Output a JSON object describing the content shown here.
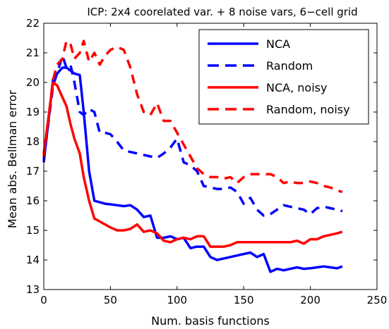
{
  "chart_data": {
    "type": "line",
    "title": "ICP: 2x4 coorelated var. + 8 noise vars, 6−cell grid",
    "xlabel": "Num. basis functions",
    "ylabel": "Mean abs. Bellman error",
    "xlim": [
      0,
      250
    ],
    "ylim": [
      13,
      22
    ],
    "xticks": [
      0,
      50,
      100,
      150,
      200,
      250
    ],
    "yticks": [
      13,
      14,
      15,
      16,
      17,
      18,
      19,
      20,
      21,
      22
    ],
    "grid": false,
    "legend_position": "top-right",
    "series": [
      {
        "name": "NCA",
        "color": "#0000ff",
        "dash": "solid",
        "x": [
          0,
          7,
          10,
          14,
          17,
          20,
          23,
          27,
          30,
          34,
          38,
          42,
          46,
          50,
          55,
          60,
          65,
          70,
          75,
          80,
          85,
          90,
          95,
          100,
          105,
          110,
          115,
          120,
          125,
          130,
          135,
          140,
          145,
          150,
          155,
          160,
          165,
          170,
          175,
          180,
          185,
          190,
          195,
          200,
          205,
          210,
          215,
          220,
          224
        ],
        "values": [
          17.3,
          20.1,
          20.3,
          20.5,
          20.5,
          20.4,
          20.3,
          20.25,
          19.0,
          17.0,
          16.0,
          15.95,
          15.9,
          15.88,
          15.85,
          15.82,
          15.85,
          15.7,
          15.45,
          15.5,
          14.75,
          14.75,
          14.8,
          14.7,
          14.75,
          14.4,
          14.45,
          14.45,
          14.1,
          14.0,
          14.05,
          14.1,
          14.15,
          14.2,
          14.25,
          14.1,
          14.2,
          13.6,
          13.7,
          13.65,
          13.7,
          13.75,
          13.7,
          13.72,
          13.75,
          13.78,
          13.75,
          13.72,
          13.78
        ]
      },
      {
        "name": "Random",
        "color": "#0000ff",
        "dash": "dashed",
        "x": [
          0,
          7,
          10,
          14,
          17,
          20,
          23,
          27,
          30,
          34,
          38,
          42,
          46,
          50,
          55,
          60,
          65,
          70,
          75,
          80,
          85,
          90,
          95,
          100,
          105,
          110,
          115,
          120,
          125,
          130,
          135,
          140,
          145,
          150,
          155,
          160,
          165,
          170,
          175,
          180,
          185,
          190,
          195,
          200,
          205,
          210,
          215,
          220,
          224
        ],
        "values": [
          17.4,
          19.9,
          20.3,
          20.9,
          20.5,
          20.6,
          20.0,
          19.0,
          18.9,
          19.1,
          19.0,
          18.3,
          18.3,
          18.25,
          18.0,
          17.7,
          17.65,
          17.6,
          17.55,
          17.5,
          17.45,
          17.6,
          17.8,
          18.1,
          17.3,
          17.2,
          17.0,
          16.5,
          16.45,
          16.4,
          16.4,
          16.45,
          16.3,
          15.9,
          16.1,
          15.7,
          15.5,
          15.55,
          15.7,
          15.85,
          15.8,
          15.75,
          15.7,
          15.55,
          15.75,
          15.8,
          15.75,
          15.7,
          15.65
        ]
      },
      {
        "name": "NCA, noisy",
        "color": "#ff0000",
        "dash": "solid",
        "x": [
          0,
          7,
          10,
          14,
          17,
          20,
          23,
          27,
          30,
          34,
          38,
          42,
          46,
          50,
          55,
          60,
          65,
          70,
          75,
          80,
          85,
          90,
          95,
          100,
          105,
          110,
          115,
          120,
          125,
          130,
          135,
          140,
          145,
          150,
          155,
          160,
          165,
          170,
          175,
          180,
          185,
          190,
          195,
          200,
          205,
          210,
          215,
          220,
          224
        ],
        "values": [
          17.6,
          20.0,
          19.9,
          19.5,
          19.2,
          18.6,
          18.1,
          17.6,
          16.8,
          16.0,
          15.4,
          15.3,
          15.2,
          15.1,
          15.0,
          15.0,
          15.05,
          15.2,
          14.95,
          15.0,
          14.9,
          14.65,
          14.6,
          14.7,
          14.75,
          14.7,
          14.8,
          14.8,
          14.45,
          14.45,
          14.45,
          14.5,
          14.6,
          14.6,
          14.6,
          14.6,
          14.6,
          14.6,
          14.6,
          14.6,
          14.6,
          14.65,
          14.55,
          14.7,
          14.7,
          14.8,
          14.85,
          14.9,
          14.95
        ]
      },
      {
        "name": "Random, noisy",
        "color": "#ff0000",
        "dash": "dashed",
        "x": [
          0,
          7,
          10,
          14,
          17,
          20,
          23,
          27,
          30,
          34,
          38,
          42,
          46,
          50,
          55,
          60,
          65,
          70,
          75,
          80,
          85,
          90,
          95,
          100,
          105,
          110,
          115,
          120,
          125,
          130,
          135,
          140,
          145,
          150,
          155,
          160,
          165,
          170,
          175,
          180,
          185,
          190,
          195,
          200,
          205,
          210,
          215,
          220,
          224
        ],
        "values": [
          17.5,
          20.1,
          20.6,
          20.8,
          21.4,
          21.3,
          20.8,
          21.0,
          21.4,
          20.7,
          21.0,
          20.6,
          20.9,
          21.1,
          21.2,
          21.1,
          20.5,
          19.6,
          19.0,
          18.9,
          19.3,
          18.7,
          18.7,
          18.3,
          17.9,
          17.5,
          17.1,
          16.9,
          16.8,
          16.8,
          16.75,
          16.8,
          16.6,
          16.8,
          16.9,
          16.9,
          16.9,
          16.9,
          16.8,
          16.6,
          16.65,
          16.6,
          16.6,
          16.65,
          16.6,
          16.5,
          16.45,
          16.35,
          16.3
        ]
      }
    ]
  }
}
